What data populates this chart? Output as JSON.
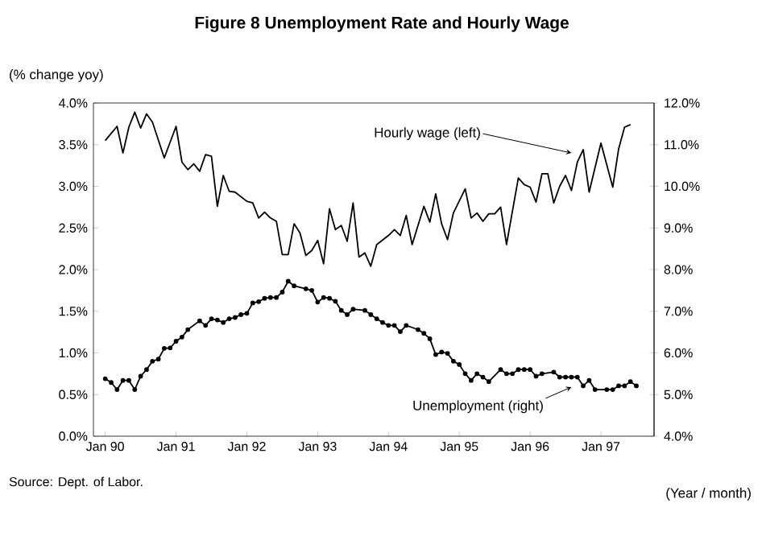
{
  "chart_data": {
    "type": "line",
    "title": "Figure 8 Unemployment Rate and Hourly Wage",
    "ylabel": "(% change yoy)",
    "xlabel": "(Year / month)",
    "annotations": [
      {
        "text": "Hourly wage (left)",
        "x": "1996-08",
        "y": 3.4
      },
      {
        "text": "Unemployment (right)",
        "x": "1996-08",
        "y": 0.59
      },
      "Source: Dept. of Labor."
    ],
    "xlim": [
      "1989-11",
      "1997-10"
    ],
    "xticks": [
      {
        "value": "1990-01",
        "label": "Jan 90"
      },
      {
        "value": "1991-01",
        "label": "Jan 91"
      },
      {
        "value": "1992-01",
        "label": "Jan 92"
      },
      {
        "value": "1993-01",
        "label": "Jan 93"
      },
      {
        "value": "1994-01",
        "label": "Jan 94"
      },
      {
        "value": "1995-01",
        "label": "Jan 95"
      },
      {
        "value": "1996-01",
        "label": "Jan 96"
      },
      {
        "value": "1997-01",
        "label": "Jan 97"
      }
    ],
    "ylim": [
      0,
      4
    ],
    "yticks": [
      {
        "value": 0,
        "label": "0.0%"
      },
      {
        "value": 0.5,
        "label": "0.5%"
      },
      {
        "value": 1,
        "label": "1.0%"
      },
      {
        "value": 1.5,
        "label": "1.5%"
      },
      {
        "value": 2,
        "label": "2.0%"
      },
      {
        "value": 2.5,
        "label": "2.5%"
      },
      {
        "value": 3,
        "label": "3.0%"
      },
      {
        "value": 3.5,
        "label": "3.5%"
      },
      {
        "value": 4,
        "label": "4.0%"
      }
    ],
    "y2lim": [
      4,
      12
    ],
    "y2ticks": [
      {
        "value": 4,
        "label": "4.0%"
      },
      {
        "value": 5,
        "label": "5.0%"
      },
      {
        "value": 6,
        "label": "6.0%"
      },
      {
        "value": 7,
        "label": "7.0%"
      },
      {
        "value": 8,
        "label": "8.0%"
      },
      {
        "value": 9,
        "label": "9.0%"
      },
      {
        "value": 10,
        "label": "10.0%"
      },
      {
        "value": 11,
        "label": "11.0%"
      },
      {
        "value": 12,
        "label": "12.0%"
      }
    ],
    "series": [
      {
        "color": "#000000",
        "marker": "none",
        "line_style": "solid",
        "axis": "y",
        "x": [
          "1990-01",
          "1990-03",
          "1990-04",
          "1990-05",
          "1990-06",
          "1990-07",
          "1990-08",
          "1990-09",
          "1990-11",
          "1991-01",
          "1991-02",
          "1991-03",
          "1991-04",
          "1991-05",
          "1991-06",
          "1991-07",
          "1991-08",
          "1991-09",
          "1991-10",
          "1991-11",
          "1992-01",
          "1992-02",
          "1992-03",
          "1992-04",
          "1992-05",
          "1992-06",
          "1992-07",
          "1992-08",
          "1992-09",
          "1992-10",
          "1992-11",
          "1992-12",
          "1993-01",
          "1993-02",
          "1993-03",
          "1993-04",
          "1993-05",
          "1993-06",
          "1993-07",
          "1993-08",
          "1993-09",
          "1993-10",
          "1993-11",
          "1994-01",
          "1994-02",
          "1994-03",
          "1994-04",
          "1994-05",
          "1994-07",
          "1994-08",
          "1994-09",
          "1994-10",
          "1994-11",
          "1994-12",
          "1995-02",
          "1995-03",
          "1995-04",
          "1995-05",
          "1995-06",
          "1995-07",
          "1995-08",
          "1995-09",
          "1995-11",
          "1995-12",
          "1996-01",
          "1996-02",
          "1996-03",
          "1996-04",
          "1996-05",
          "1996-06",
          "1996-07",
          "1996-08",
          "1996-09",
          "1996-10",
          "1996-11",
          "1997-01",
          "1997-03",
          "1997-04",
          "1997-05",
          "1997-06"
        ],
        "values": [
          3.55,
          3.72,
          3.4,
          3.71,
          3.89,
          3.7,
          3.87,
          3.77,
          3.34,
          3.72,
          3.29,
          3.2,
          3.27,
          3.18,
          3.38,
          3.36,
          2.76,
          3.13,
          2.94,
          2.93,
          2.82,
          2.8,
          2.62,
          2.69,
          2.62,
          2.58,
          2.18,
          2.18,
          2.55,
          2.44,
          2.17,
          2.23,
          2.35,
          2.07,
          2.73,
          2.48,
          2.53,
          2.34,
          2.8,
          2.15,
          2.2,
          2.04,
          2.3,
          2.41,
          2.48,
          2.41,
          2.65,
          2.3,
          2.76,
          2.57,
          2.91,
          2.55,
          2.36,
          2.68,
          2.97,
          2.62,
          2.68,
          2.58,
          2.67,
          2.67,
          2.75,
          2.3,
          3.1,
          3.02,
          2.99,
          2.81,
          3.15,
          3.15,
          2.8,
          3.0,
          3.13,
          2.95,
          3.29,
          3.44,
          2.93,
          3.52,
          2.99,
          3.45,
          3.71,
          3.74
        ]
      },
      {
        "color": "#000000",
        "marker": "circle",
        "line_style": "solid",
        "axis": "y2",
        "x": [
          "1990-01",
          "1990-02",
          "1990-03",
          "1990-04",
          "1990-05",
          "1990-06",
          "1990-07",
          "1990-08",
          "1990-09",
          "1990-10",
          "1990-11",
          "1990-12",
          "1991-01",
          "1991-02",
          "1991-03",
          "1991-05",
          "1991-06",
          "1991-07",
          "1991-08",
          "1991-09",
          "1991-10",
          "1991-11",
          "1991-12",
          "1992-01",
          "1992-02",
          "1992-03",
          "1992-04",
          "1992-05",
          "1992-06",
          "1992-07",
          "1992-08",
          "1992-09",
          "1992-11",
          "1992-12",
          "1993-01",
          "1993-02",
          "1993-03",
          "1993-04",
          "1993-05",
          "1993-06",
          "1993-07",
          "1993-09",
          "1993-10",
          "1993-11",
          "1993-12",
          "1994-01",
          "1994-02",
          "1994-03",
          "1994-04",
          "1994-06",
          "1994-07",
          "1994-08",
          "1994-09",
          "1994-10",
          "1994-11",
          "1994-12",
          "1995-01",
          "1995-02",
          "1995-03",
          "1995-04",
          "1995-05",
          "1995-06",
          "1995-08",
          "1995-09",
          "1995-10",
          "1995-11",
          "1995-12",
          "1996-01",
          "1996-02",
          "1996-03",
          "1996-05",
          "1996-06",
          "1996-07",
          "1996-08",
          "1996-09",
          "1996-10",
          "1996-11",
          "1996-12",
          "1997-02",
          "1997-03",
          "1997-04",
          "1997-05",
          "1997-06",
          "1997-07"
        ],
        "values": [
          5.38,
          5.29,
          5.12,
          5.34,
          5.34,
          5.12,
          5.44,
          5.6,
          5.8,
          5.85,
          6.11,
          6.12,
          6.28,
          6.38,
          6.56,
          6.77,
          6.66,
          6.82,
          6.79,
          6.73,
          6.82,
          6.85,
          6.92,
          6.95,
          7.2,
          7.23,
          7.31,
          7.33,
          7.33,
          7.46,
          7.72,
          7.61,
          7.54,
          7.5,
          7.22,
          7.33,
          7.31,
          7.24,
          7.02,
          6.92,
          7.05,
          7.02,
          6.92,
          6.82,
          6.73,
          6.66,
          6.66,
          6.51,
          6.66,
          6.56,
          6.47,
          6.34,
          5.96,
          6.02,
          5.99,
          5.8,
          5.72,
          5.5,
          5.34,
          5.5,
          5.42,
          5.31,
          5.6,
          5.5,
          5.5,
          5.6,
          5.6,
          5.6,
          5.44,
          5.5,
          5.54,
          5.42,
          5.42,
          5.42,
          5.42,
          5.21,
          5.34,
          5.12,
          5.12,
          5.12,
          5.21,
          5.21,
          5.31,
          5.21
        ]
      }
    ]
  }
}
